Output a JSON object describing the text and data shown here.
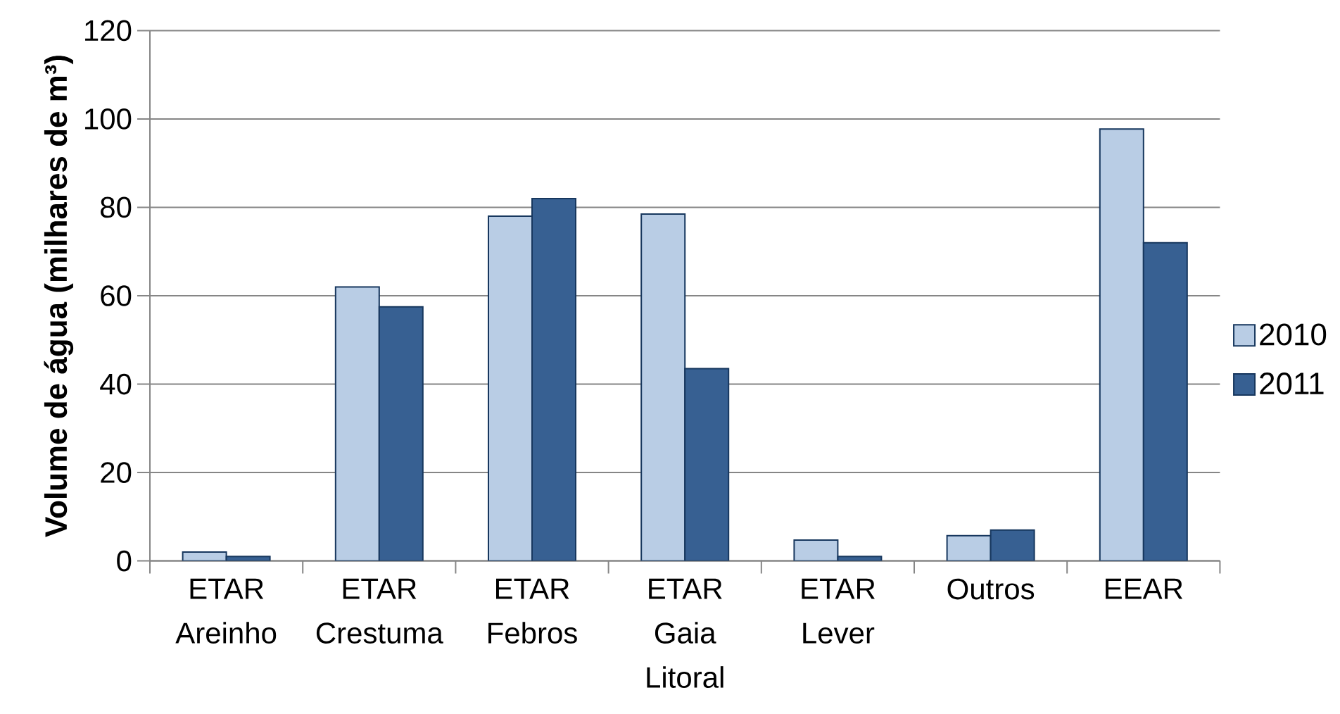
{
  "chart_data": {
    "type": "bar",
    "ylabel": "Volume de água (milhares de m³)",
    "categories": [
      "ETAR Areinho",
      "ETAR Crestuma",
      "ETAR Febros",
      "ETAR Gaia Litoral",
      "ETAR Lever",
      "Outros",
      "EEAR"
    ],
    "series": [
      {
        "name": "2010",
        "color": "#b9cde5",
        "values": [
          2,
          62,
          78,
          78.5,
          4.7,
          5.7,
          97.7
        ]
      },
      {
        "name": "2011",
        "color": "#376092",
        "values": [
          1,
          57.5,
          82,
          43.5,
          1,
          7,
          72
        ]
      }
    ],
    "ylim": [
      0,
      120
    ],
    "yticks": [
      0,
      20,
      40,
      60,
      80,
      100,
      120
    ],
    "grid": "y",
    "legend": "right"
  }
}
